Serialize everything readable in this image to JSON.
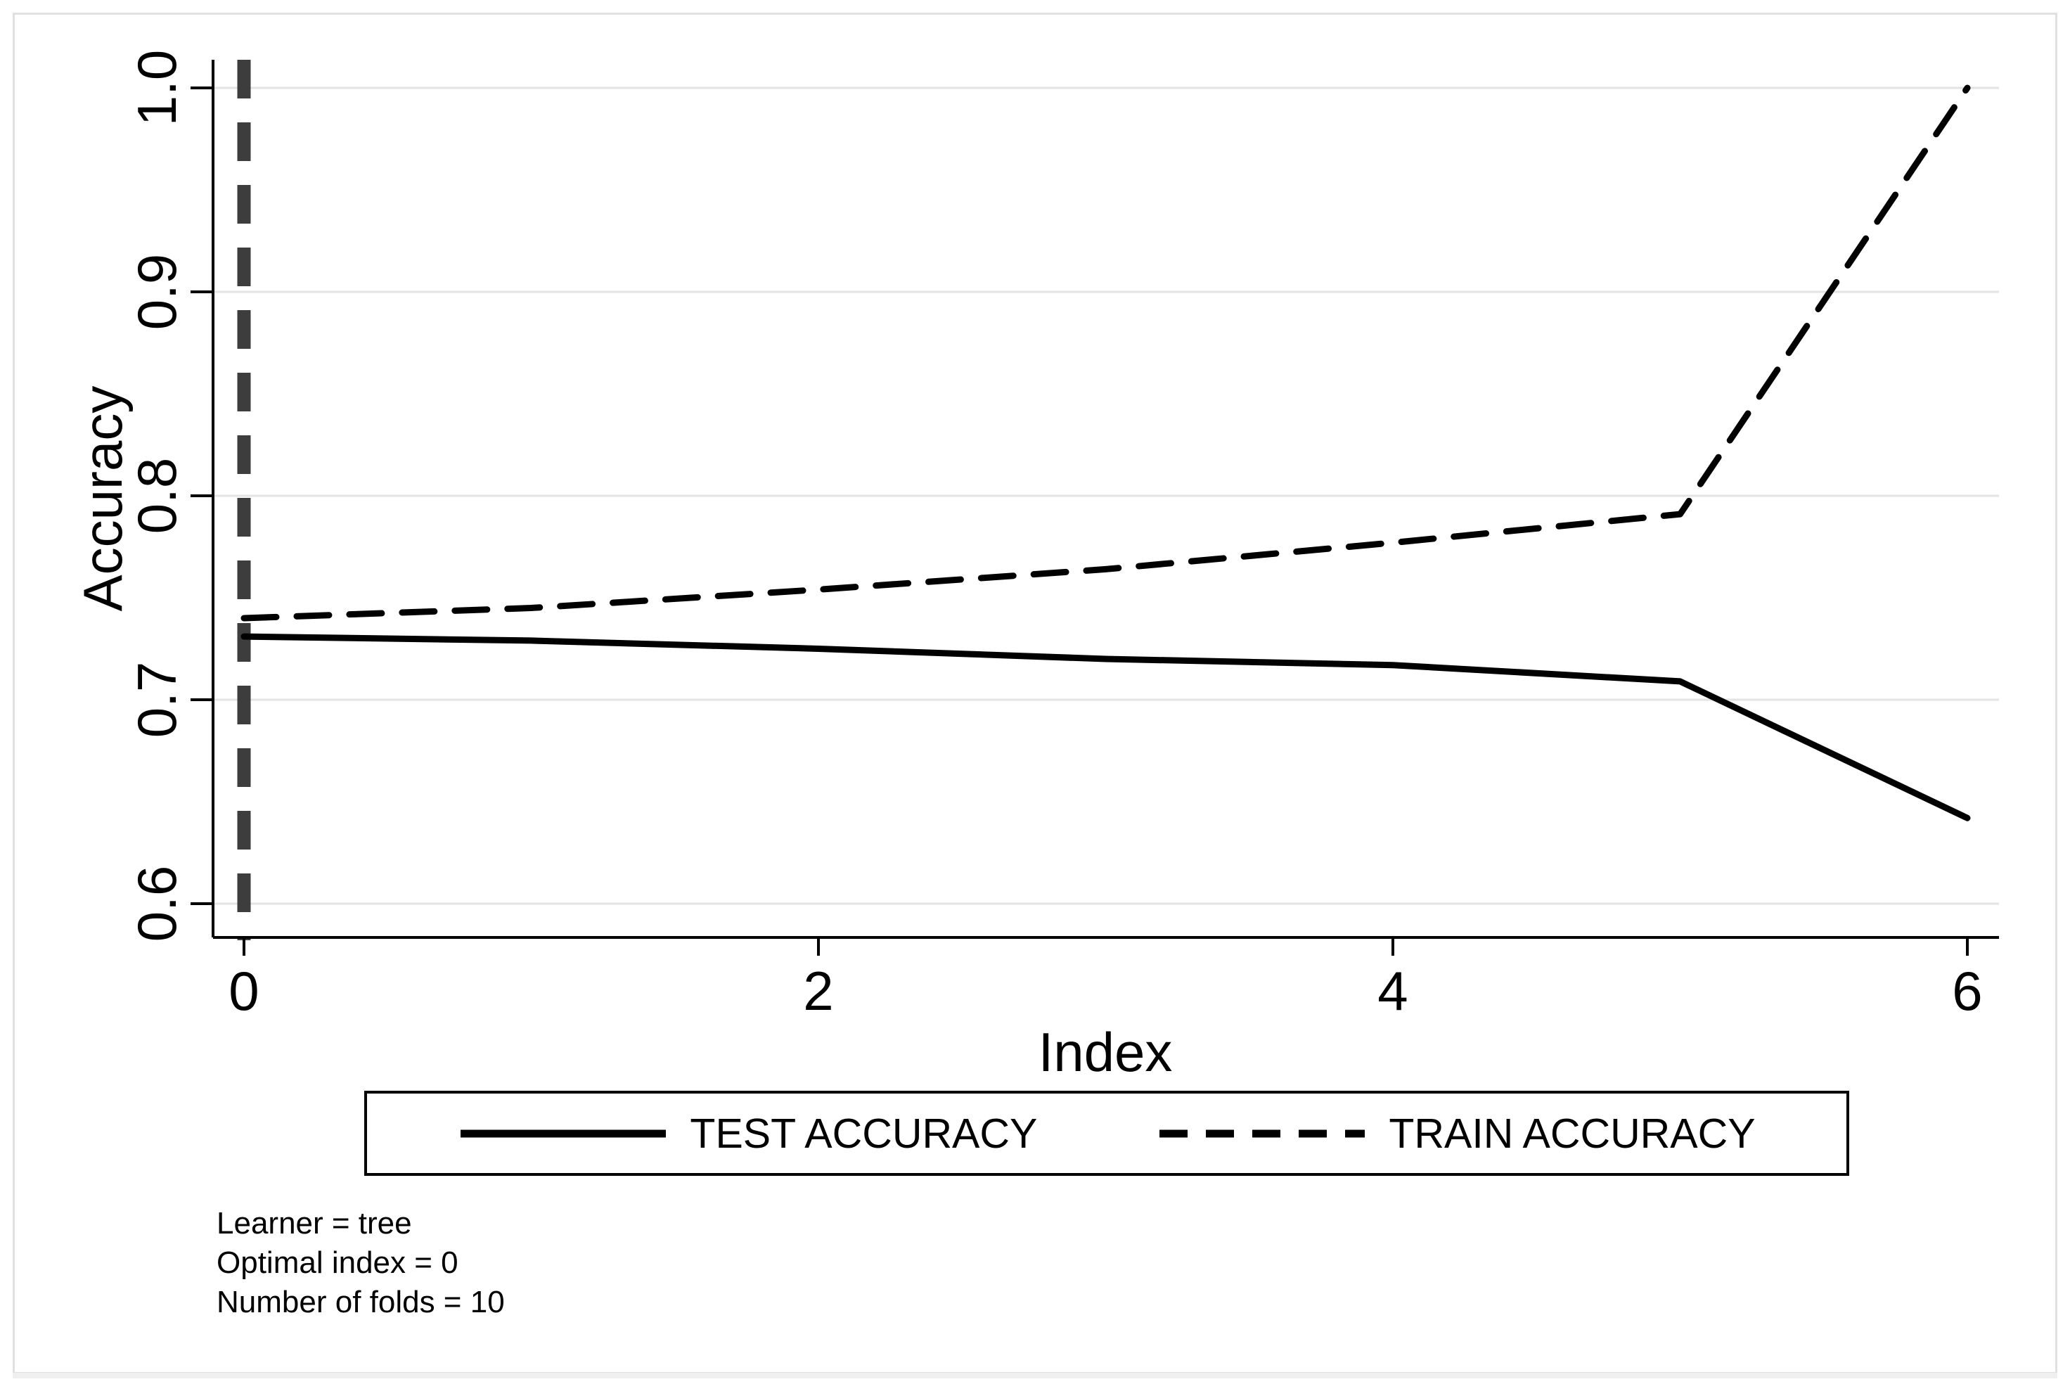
{
  "chart_data": {
    "type": "line",
    "title": "",
    "xlabel": "Index",
    "ylabel": "Accuracy",
    "x": [
      0,
      1,
      2,
      3,
      4,
      5,
      6
    ],
    "series": [
      {
        "name": "TEST ACCURACY",
        "line_style": "solid",
        "values": [
          0.731,
          0.729,
          0.725,
          0.72,
          0.717,
          0.709,
          0.642
        ]
      },
      {
        "name": "TRAIN ACCURACY",
        "line_style": "dashed",
        "values": [
          0.74,
          0.745,
          0.754,
          0.764,
          0.777,
          0.791,
          1.0
        ]
      }
    ],
    "xticks": {
      "values": [
        0,
        2,
        4,
        6
      ],
      "labels": [
        "0",
        "2",
        "4",
        "6"
      ]
    },
    "yticks": {
      "values": [
        1.0,
        0.9,
        0.8,
        0.7,
        0.6
      ],
      "labels": [
        "1.0",
        "0.9",
        "0.8",
        "0.7",
        "0.6"
      ]
    },
    "xlim": [
      -0.11,
      6.12
    ],
    "ylim": [
      0.583,
      1.014
    ],
    "grid": "horizontal",
    "marker_line": {
      "x": 0,
      "meaning": "optimal index",
      "style": "dashed"
    },
    "legend": {
      "position": "bottom",
      "items": [
        {
          "label": "TEST ACCURACY",
          "line_style": "solid"
        },
        {
          "label": "TRAIN ACCURACY",
          "line_style": "dashed"
        }
      ]
    }
  },
  "notes": {
    "lines": [
      "Learner = tree",
      "Optimal index = 0",
      "Number of folds = 10"
    ]
  },
  "colors": {
    "series_line": "#000000",
    "grid_line": "#e3e3e3",
    "marker_line": "#3d3d3d",
    "axis_line": "#000000",
    "figure_border": "#e0e0e0",
    "background": "#ffffff"
  }
}
